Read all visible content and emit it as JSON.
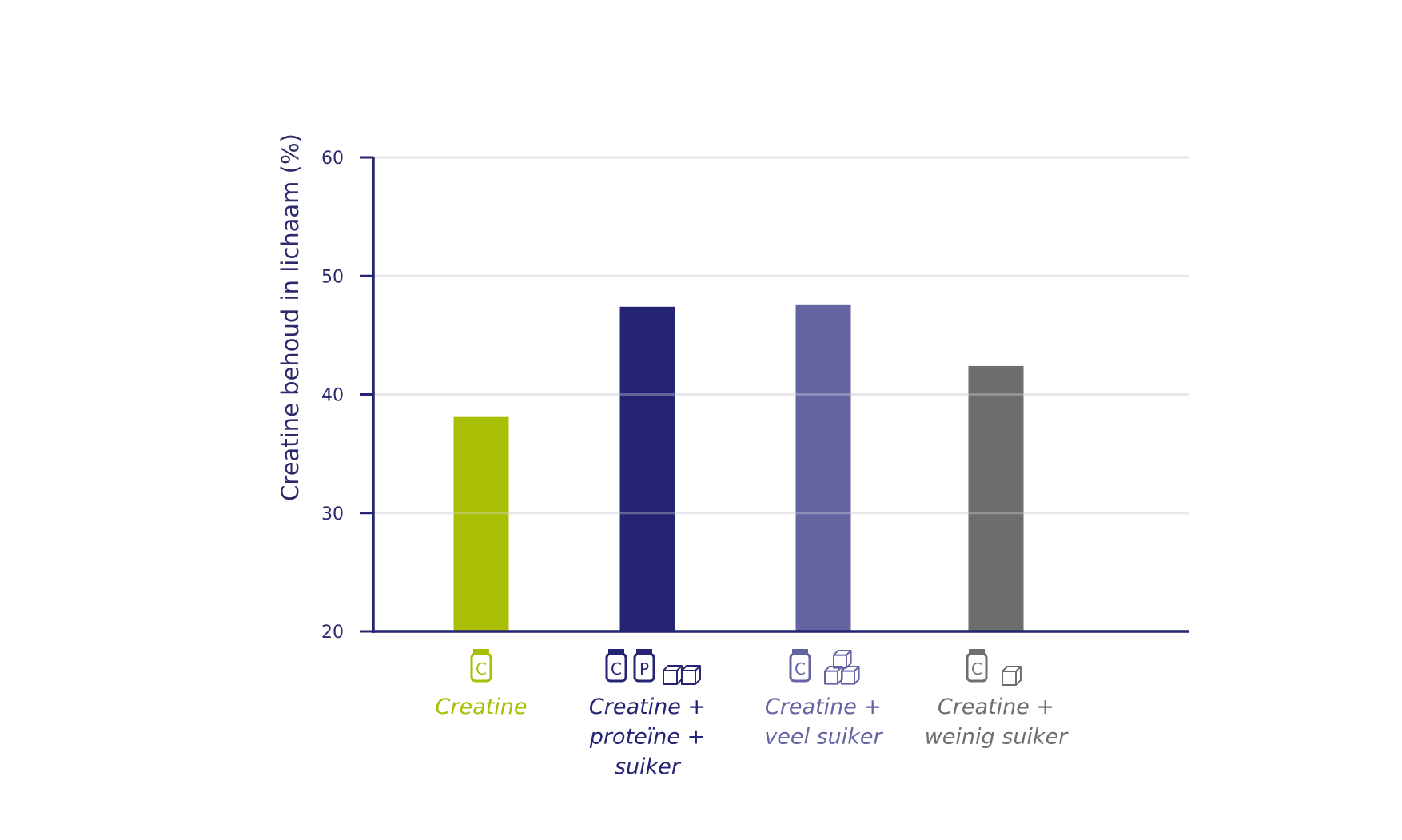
{
  "chart_data": {
    "type": "bar",
    "categories": [
      [
        "Creatine"
      ],
      [
        "Creatine +",
        "proteïne +",
        "suiker"
      ],
      [
        "Creatine +",
        "veel suiker"
      ],
      [
        "Creatine +",
        "weinig suiker"
      ]
    ],
    "values": [
      38.1,
      47.4,
      47.6,
      42.4
    ],
    "colors": [
      "#a9bf05",
      "#242472",
      "#6464a2",
      "#6e6e6e"
    ],
    "label_colors": [
      "#a9bf05",
      "#242472",
      "#6464a2",
      "#6e6e6e"
    ],
    "icons": [
      [
        "creatine-jar-icon"
      ],
      [
        "creatine-jar-icon",
        "protein-jar-icon",
        "sugar-cube-icon",
        "sugar-cube-icon"
      ],
      [
        "creatine-jar-icon",
        "sugar-cubes-stack-icon"
      ],
      [
        "creatine-jar-icon",
        "sugar-cube-icon"
      ]
    ],
    "icon_letters": {
      "creatine": "C",
      "protein": "P"
    },
    "ylabel": "Creatine behoud in lichaam (%)",
    "ylim": [
      20,
      60
    ],
    "yticks": [
      20,
      30,
      40,
      50,
      60
    ],
    "grid": true,
    "axis_color": "#242472"
  }
}
